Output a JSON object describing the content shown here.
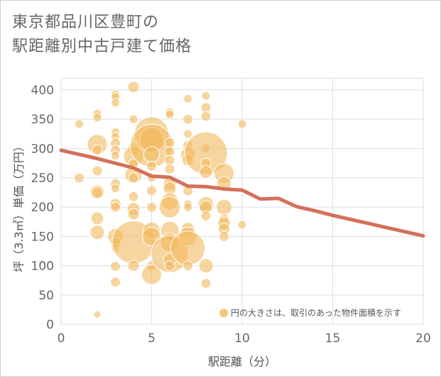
{
  "title_line1": "東京都品川区豊町の",
  "title_line2": "駅距離別中古戸建て価格",
  "chart_data": {
    "type": "scatter",
    "xlabel": "駅距離（分）",
    "ylabel": "坪（3.3㎡）単価（万円）",
    "xlim": [
      0,
      20
    ],
    "ylim": [
      0,
      420
    ],
    "x_ticks": [
      "0",
      "5",
      "10",
      "15",
      "20"
    ],
    "y_ticks": [
      "0",
      "50",
      "100",
      "150",
      "200",
      "250",
      "300",
      "350",
      "400"
    ],
    "grid": true,
    "legend_text": "円の大きさは、取引のあった物件面積を示す",
    "legend_position": "bottom-right",
    "colors": {
      "bubble": "#f2b95e",
      "line": "#d4705a",
      "grid": "#d6e1ea"
    },
    "bubbles": [
      {
        "x": 1,
        "y": 250,
        "s": 7
      },
      {
        "x": 1,
        "y": 342,
        "s": 6
      },
      {
        "x": 2,
        "y": 17,
        "s": 5
      },
      {
        "x": 2,
        "y": 360,
        "s": 6
      },
      {
        "x": 2,
        "y": 353,
        "s": 6
      },
      {
        "x": 2,
        "y": 307,
        "s": 14
      },
      {
        "x": 2,
        "y": 298,
        "s": 7
      },
      {
        "x": 2,
        "y": 262,
        "s": 7
      },
      {
        "x": 2,
        "y": 226,
        "s": 10
      },
      {
        "x": 2,
        "y": 225,
        "s": 8
      },
      {
        "x": 2,
        "y": 181,
        "s": 9
      },
      {
        "x": 2,
        "y": 157,
        "s": 10
      },
      {
        "x": 3,
        "y": 393,
        "s": 6
      },
      {
        "x": 3,
        "y": 388,
        "s": 6
      },
      {
        "x": 3,
        "y": 378,
        "s": 6
      },
      {
        "x": 3,
        "y": 328,
        "s": 6
      },
      {
        "x": 3,
        "y": 320,
        "s": 6
      },
      {
        "x": 3,
        "y": 309,
        "s": 7
      },
      {
        "x": 3,
        "y": 297,
        "s": 7
      },
      {
        "x": 3,
        "y": 288,
        "s": 6
      },
      {
        "x": 3,
        "y": 240,
        "s": 7
      },
      {
        "x": 3,
        "y": 232,
        "s": 6
      },
      {
        "x": 3,
        "y": 205,
        "s": 8
      },
      {
        "x": 3,
        "y": 200,
        "s": 7
      },
      {
        "x": 3,
        "y": 150,
        "s": 11
      },
      {
        "x": 3,
        "y": 140,
        "s": 7
      },
      {
        "x": 3,
        "y": 130,
        "s": 6
      },
      {
        "x": 3,
        "y": 99,
        "s": 7
      },
      {
        "x": 3,
        "y": 72,
        "s": 7
      },
      {
        "x": 4,
        "y": 405,
        "s": 8
      },
      {
        "x": 4,
        "y": 350,
        "s": 6
      },
      {
        "x": 4,
        "y": 300,
        "s": 8
      },
      {
        "x": 4,
        "y": 287,
        "s": 14
      },
      {
        "x": 4,
        "y": 274,
        "s": 7
      },
      {
        "x": 4,
        "y": 255,
        "s": 12
      },
      {
        "x": 4,
        "y": 250,
        "s": 7
      },
      {
        "x": 4,
        "y": 218,
        "s": 7
      },
      {
        "x": 4,
        "y": 197,
        "s": 9
      },
      {
        "x": 4,
        "y": 188,
        "s": 8
      },
      {
        "x": 4,
        "y": 140,
        "s": 30
      },
      {
        "x": 4,
        "y": 100,
        "s": 8
      },
      {
        "x": 5,
        "y": 325,
        "s": 24
      },
      {
        "x": 5,
        "y": 315,
        "s": 17
      },
      {
        "x": 5,
        "y": 305,
        "s": 30
      },
      {
        "x": 5,
        "y": 290,
        "s": 11
      },
      {
        "x": 5,
        "y": 270,
        "s": 7
      },
      {
        "x": 5,
        "y": 250,
        "s": 6
      },
      {
        "x": 5,
        "y": 228,
        "s": 7
      },
      {
        "x": 5,
        "y": 200,
        "s": 7
      },
      {
        "x": 5,
        "y": 160,
        "s": 12
      },
      {
        "x": 5,
        "y": 150,
        "s": 13
      },
      {
        "x": 5,
        "y": 100,
        "s": 7
      },
      {
        "x": 5,
        "y": 85,
        "s": 14
      },
      {
        "x": 6,
        "y": 362,
        "s": 6
      },
      {
        "x": 6,
        "y": 358,
        "s": 6
      },
      {
        "x": 6,
        "y": 310,
        "s": 7
      },
      {
        "x": 6,
        "y": 295,
        "s": 7
      },
      {
        "x": 6,
        "y": 280,
        "s": 7
      },
      {
        "x": 6,
        "y": 265,
        "s": 7
      },
      {
        "x": 6,
        "y": 240,
        "s": 9
      },
      {
        "x": 6,
        "y": 232,
        "s": 9
      },
      {
        "x": 6,
        "y": 210,
        "s": 12
      },
      {
        "x": 6,
        "y": 200,
        "s": 15
      },
      {
        "x": 6,
        "y": 160,
        "s": 13
      },
      {
        "x": 6,
        "y": 140,
        "s": 13
      },
      {
        "x": 6,
        "y": 120,
        "s": 26
      },
      {
        "x": 6,
        "y": 110,
        "s": 9
      },
      {
        "x": 6,
        "y": 100,
        "s": 7
      },
      {
        "x": 7,
        "y": 385,
        "s": 6
      },
      {
        "x": 7,
        "y": 350,
        "s": 7
      },
      {
        "x": 7,
        "y": 325,
        "s": 6
      },
      {
        "x": 7,
        "y": 305,
        "s": 7
      },
      {
        "x": 7,
        "y": 290,
        "s": 10
      },
      {
        "x": 7,
        "y": 280,
        "s": 8
      },
      {
        "x": 7,
        "y": 228,
        "s": 7
      },
      {
        "x": 7,
        "y": 205,
        "s": 6
      },
      {
        "x": 7,
        "y": 200,
        "s": 6
      },
      {
        "x": 7,
        "y": 163,
        "s": 9
      },
      {
        "x": 7,
        "y": 150,
        "s": 13
      },
      {
        "x": 7,
        "y": 130,
        "s": 24
      },
      {
        "x": 7,
        "y": 100,
        "s": 7
      },
      {
        "x": 8,
        "y": 390,
        "s": 6
      },
      {
        "x": 8,
        "y": 370,
        "s": 7
      },
      {
        "x": 8,
        "y": 355,
        "s": 7
      },
      {
        "x": 8,
        "y": 300,
        "s": 6
      },
      {
        "x": 8,
        "y": 292,
        "s": 30
      },
      {
        "x": 8,
        "y": 275,
        "s": 7
      },
      {
        "x": 8,
        "y": 260,
        "s": 9
      },
      {
        "x": 8,
        "y": 205,
        "s": 11
      },
      {
        "x": 8,
        "y": 200,
        "s": 9
      },
      {
        "x": 8,
        "y": 185,
        "s": 7
      },
      {
        "x": 8,
        "y": 100,
        "s": 10
      },
      {
        "x": 8,
        "y": 70,
        "s": 7
      },
      {
        "x": 9,
        "y": 258,
        "s": 14
      },
      {
        "x": 9,
        "y": 240,
        "s": 10
      },
      {
        "x": 9,
        "y": 200,
        "s": 11
      },
      {
        "x": 9,
        "y": 180,
        "s": 7
      },
      {
        "x": 9,
        "y": 172,
        "s": 9
      },
      {
        "x": 9,
        "y": 163,
        "s": 8
      },
      {
        "x": 9,
        "y": 150,
        "s": 7
      },
      {
        "x": 10,
        "y": 342,
        "s": 6
      },
      {
        "x": 10,
        "y": 170,
        "s": 6
      }
    ],
    "line": {
      "x": [
        0,
        1,
        2,
        3,
        4,
        5,
        6,
        7,
        8,
        9,
        10,
        11,
        12,
        13,
        14,
        15,
        16,
        17,
        18,
        19,
        20
      ],
      "y": [
        297,
        290,
        283,
        275,
        267,
        253,
        251,
        236,
        235,
        231,
        229,
        214,
        215,
        201,
        194,
        186,
        179,
        172,
        165,
        158,
        151
      ]
    }
  }
}
